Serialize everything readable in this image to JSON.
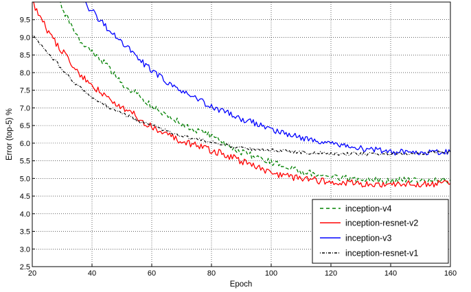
{
  "chart_data": {
    "type": "line",
    "title": "",
    "xlabel": "Epoch",
    "ylabel": "Error (top-5) %",
    "xlim": [
      20,
      160
    ],
    "ylim": [
      2.5,
      10.0
    ],
    "x_ticks": [
      "20",
      "40",
      "60",
      "80",
      "100",
      "120",
      "140",
      "160"
    ],
    "y_ticks": [
      "2.5",
      "3.0",
      "3.5",
      "4.0",
      "4.5",
      "5.0",
      "5.5",
      "6.0",
      "6.5",
      "7.0",
      "7.5",
      "8.0",
      "8.5",
      "9.0",
      "9.5"
    ],
    "grid": true,
    "legend_position": "lower-right",
    "series": [
      {
        "name": "inception-v4",
        "color": "#008000",
        "style": "dashed",
        "x": [
          29,
          35,
          40,
          45,
          50,
          55,
          60,
          65,
          70,
          80,
          90,
          100,
          110,
          120,
          130,
          140,
          150,
          160
        ],
        "y": [
          10.0,
          9.0,
          8.6,
          8.2,
          7.7,
          7.4,
          7.05,
          6.8,
          6.55,
          6.2,
          5.75,
          5.45,
          5.2,
          5.05,
          4.95,
          4.95,
          4.95,
          4.95
        ]
      },
      {
        "name": "inception-resnet-v2",
        "color": "#ff0000",
        "style": "solid",
        "x": [
          20,
          25,
          30,
          35,
          40,
          45,
          50,
          55,
          60,
          65,
          70,
          80,
          90,
          100,
          110,
          120,
          130,
          140,
          150,
          160
        ],
        "y": [
          10.0,
          9.2,
          8.6,
          8.05,
          7.65,
          7.3,
          7.05,
          6.75,
          6.45,
          6.25,
          6.05,
          5.8,
          5.5,
          5.15,
          5.0,
          4.9,
          4.85,
          4.85,
          4.85,
          4.85
        ]
      },
      {
        "name": "inception-v3",
        "color": "#0000ff",
        "style": "solid",
        "x": [
          37,
          40,
          45,
          50,
          55,
          60,
          65,
          70,
          80,
          90,
          100,
          110,
          120,
          130,
          140,
          150,
          160
        ],
        "y": [
          10.0,
          9.75,
          9.25,
          8.85,
          8.45,
          8.05,
          7.75,
          7.45,
          7.05,
          6.7,
          6.4,
          6.15,
          6.0,
          5.85,
          5.75,
          5.75,
          5.75
        ]
      },
      {
        "name": "inception-resnet-v1",
        "color": "#000000",
        "style": "dash-dot",
        "x": [
          20,
          25,
          30,
          35,
          40,
          45,
          50,
          55,
          60,
          65,
          70,
          80,
          90,
          100,
          110,
          120,
          130,
          140,
          150,
          160
        ],
        "y": [
          9.05,
          8.6,
          8.1,
          7.65,
          7.3,
          7.05,
          6.85,
          6.65,
          6.5,
          6.35,
          6.2,
          6.05,
          5.85,
          5.8,
          5.75,
          5.7,
          5.7,
          5.7,
          5.7,
          5.75
        ]
      }
    ]
  }
}
